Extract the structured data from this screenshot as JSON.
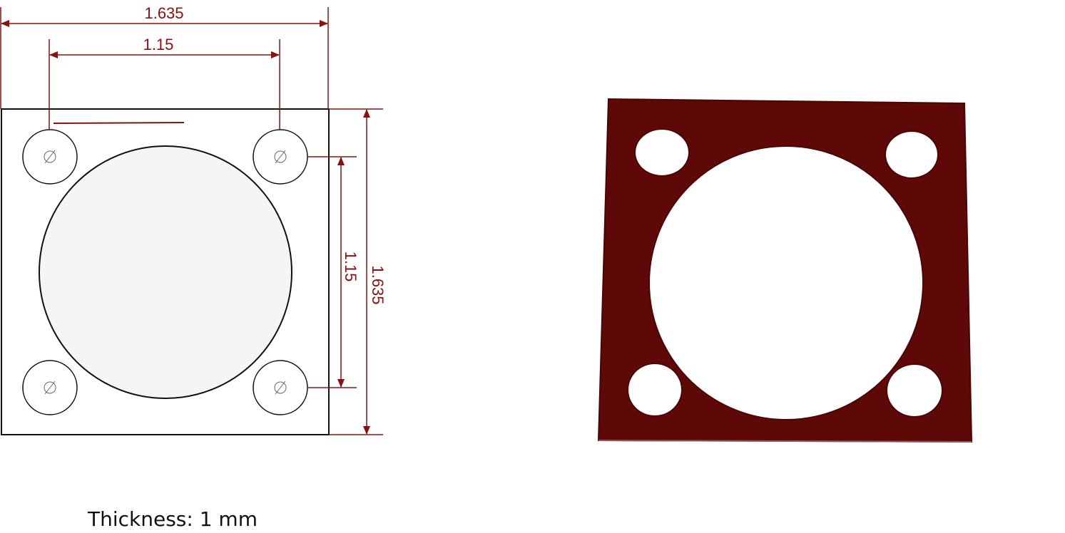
{
  "drawing": {
    "dim_overall_width": "1.635",
    "dim_hole_spacing_horizontal": "1.15",
    "dim_hole_spacing_vertical": "1.15",
    "dim_overall_height": "1.635",
    "hole_symbol": "⌀"
  },
  "note": {
    "thickness": "Thickness: 1 mm"
  },
  "colors": {
    "dimension": "#8b1010",
    "outline": "#111111",
    "gasket": "#5e0808",
    "gasket_edge": "#4a0505"
  }
}
